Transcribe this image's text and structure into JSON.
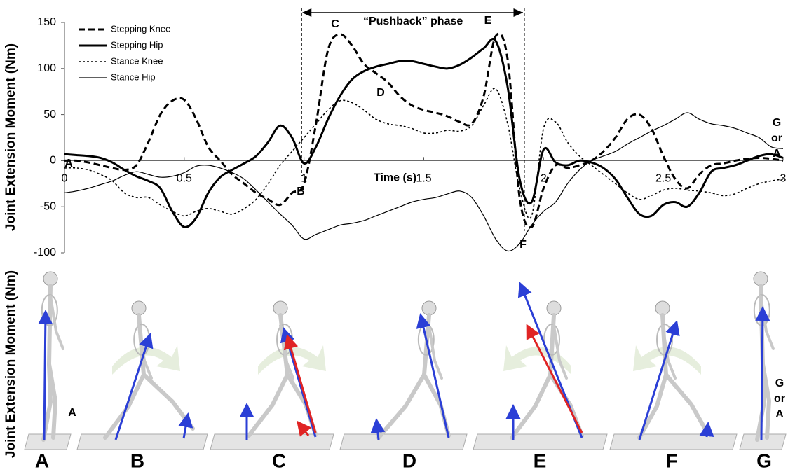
{
  "chart_data": {
    "type": "line",
    "xlabel": "Time (s)",
    "ylabel": "Joint Extension Moment (Nm)",
    "xlim": [
      0,
      3
    ],
    "ylim": [
      -100,
      150
    ],
    "xticks": [
      0,
      0.5,
      1,
      1.5,
      2,
      2.5,
      3
    ],
    "yticks": [
      150,
      100,
      50,
      0,
      -50,
      -100
    ],
    "legend": "upper left",
    "x": [
      0,
      0.05,
      0.1,
      0.15,
      0.2,
      0.25,
      0.3,
      0.35,
      0.4,
      0.45,
      0.5,
      0.55,
      0.6,
      0.65,
      0.7,
      0.75,
      0.8,
      0.85,
      0.9,
      0.95,
      1,
      1.05,
      1.1,
      1.15,
      1.2,
      1.25,
      1.3,
      1.35,
      1.4,
      1.45,
      1.5,
      1.55,
      1.6,
      1.65,
      1.7,
      1.75,
      1.8,
      1.85,
      1.9,
      1.95,
      2,
      2.05,
      2.1,
      2.15,
      2.2,
      2.25,
      2.3,
      2.35,
      2.4,
      2.45,
      2.5,
      2.55,
      2.6,
      2.65,
      2.7,
      2.75,
      2.8,
      2.85,
      2.9,
      2.95,
      3
    ],
    "series": [
      {
        "name": "Stepping Knee",
        "color": "#000000",
        "line_style": "dashed",
        "line_width": 3,
        "values": [
          0,
          0,
          -2,
          -5,
          -8,
          -10,
          -5,
          20,
          50,
          65,
          66,
          45,
          15,
          0,
          -15,
          -25,
          -35,
          -42,
          -48,
          -35,
          -25,
          40,
          120,
          137,
          125,
          105,
          95,
          85,
          70,
          60,
          55,
          52,
          48,
          42,
          40,
          70,
          135,
          110,
          -40,
          -72,
          -30,
          -5,
          -8,
          -5,
          0,
          10,
          25,
          45,
          50,
          35,
          5,
          -20,
          -30,
          -15,
          -5,
          -3,
          0,
          2,
          3,
          2,
          0
        ]
      },
      {
        "name": "Stepping Hip",
        "color": "#000000",
        "line_style": "solid",
        "line_width": 3,
        "values": [
          7,
          6,
          5,
          3,
          -2,
          -10,
          -17,
          -22,
          -30,
          -55,
          -72,
          -62,
          -35,
          -18,
          -10,
          -3,
          5,
          20,
          38,
          25,
          -3,
          15,
          45,
          70,
          88,
          97,
          102,
          105,
          108,
          108,
          105,
          102,
          100,
          104,
          112,
          122,
          130,
          80,
          -20,
          -45,
          12,
          -2,
          -5,
          0,
          -2,
          -8,
          -20,
          -40,
          -58,
          -60,
          -48,
          -45,
          -50,
          -35,
          -12,
          -8,
          -5,
          0,
          5,
          7,
          3
        ]
      },
      {
        "name": "Stance Knee",
        "color": "#000000",
        "line_style": "dotted",
        "line_width": 1.6,
        "values": [
          -8,
          -8,
          -10,
          -15,
          -22,
          -35,
          -40,
          -40,
          -48,
          -55,
          -60,
          -55,
          -52,
          -55,
          -58,
          -52,
          -42,
          -25,
          -5,
          10,
          25,
          40,
          55,
          65,
          63,
          55,
          45,
          40,
          38,
          35,
          30,
          30,
          33,
          32,
          38,
          60,
          78,
          40,
          -30,
          -60,
          35,
          42,
          20,
          5,
          -5,
          -15,
          -25,
          -35,
          -42,
          -38,
          -32,
          -30,
          -32,
          -33,
          -35,
          -38,
          -36,
          -30,
          -25,
          -22,
          -20
        ]
      },
      {
        "name": "Stance Hip",
        "color": "#000000",
        "line_style": "solid",
        "line_width": 1.2,
        "values": [
          -35,
          -33,
          -30,
          -26,
          -22,
          -16,
          -12,
          -15,
          -18,
          -17,
          -13,
          -6,
          -5,
          -8,
          -13,
          -20,
          -32,
          -45,
          -58,
          -70,
          -85,
          -80,
          -75,
          -70,
          -68,
          -65,
          -60,
          -55,
          -50,
          -45,
          -42,
          -40,
          -36,
          -33,
          -40,
          -60,
          -85,
          -98,
          -90,
          -70,
          -55,
          -45,
          -25,
          -10,
          0,
          5,
          10,
          18,
          25,
          32,
          38,
          45,
          52,
          45,
          40,
          38,
          35,
          30,
          25,
          15,
          13
        ]
      }
    ],
    "annotations": [
      "A",
      "B",
      "C",
      "D",
      "E",
      "F"
    ],
    "side_label": [
      "G",
      "or",
      "A"
    ],
    "phase": {
      "label": "“Pushback” phase",
      "x": [
        0.99,
        1.92
      ]
    }
  },
  "figure": {
    "ylabel": "Joint Extension Moment (Nm)",
    "panel_labels": [
      "A",
      "B",
      "C",
      "D",
      "E",
      "F",
      "G"
    ],
    "start_label": "A",
    "end_label": [
      "G",
      "or",
      "A"
    ]
  }
}
